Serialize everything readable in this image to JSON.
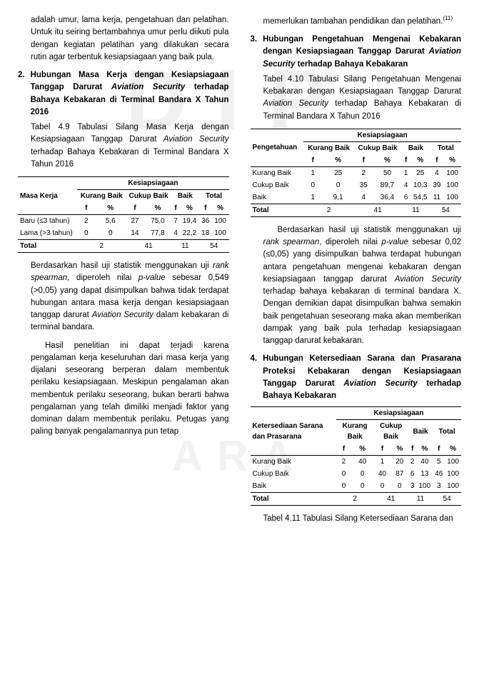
{
  "left": {
    "p1": "adalah umur, lama kerja, pengetahuan dan pelatihan. Untuk itu seiring bertambahnya umur perlu diikuti pula dengan kegiatan pelatihan yang dilakukan secara rutin agar terbentuk kesiapsiagaan yang baik pula.",
    "h2_num": "2.",
    "h2_a": "Hubungan Masa Kerja dengan Kesiapsiagaan Tanggap Darurat ",
    "h2_b": "Aviation Security",
    "h2_c": " terhadap Bahaya Kebakaran di Terminal Bandara X Tahun 2016",
    "p2a": "Tabel 4.9 Tabulasi Silang Masa Kerja dengan Kesiapsiagaan Tanggap Darurat ",
    "p2b": "Aviation Security",
    "p2c": " terhadap Bahaya Kebakaran di Terminal Bandara X Tahun 2016",
    "table9": {
      "rowLabel": "Masa Kerja",
      "colGroupLabel": "Kesiapsiagaan",
      "cols": [
        "Kurang Baik",
        "Cukup Baik",
        "Baik",
        "Total"
      ],
      "sub": [
        "f",
        "%",
        "f",
        "%",
        "f",
        "%",
        "f",
        "%"
      ],
      "rows": [
        {
          "label": "Baru (≤3 tahun)",
          "cells": [
            "2",
            "5,6",
            "27",
            "75,0",
            "7",
            "19,4",
            "36",
            "100"
          ]
        },
        {
          "label": "Lama (>3 tahun)",
          "cells": [
            "0",
            "0",
            "14",
            "77,8",
            "4",
            "22,2",
            "18",
            "100"
          ]
        }
      ],
      "total": {
        "label": "Total",
        "cells": [
          "2",
          "",
          "41",
          "",
          "11",
          "",
          "54",
          ""
        ]
      },
      "style": {
        "border_color": "#000000",
        "header_bg": "#ffffff",
        "font_size": 10
      }
    },
    "p3a": "Berdasarkan hasil uji statistik menggunakan uji ",
    "p3b": "rank spearman",
    "p3c": ", diperoleh nilai ",
    "p3d": "p-value",
    "p3e": " sebesar 0,549 (>0,05) yang dapat disimpulkan bahwa tidak terdapat hubungan antara masa kerja dengan kesiapsiagaan tanggap darurat ",
    "p3f": "Aviation Security",
    "p3g": " dalam kebakaran di terminal bandara.",
    "p4": "Hasil penelitian ini dapat terjadi karena pengalaman kerja keseluruhan dari masa kerja yang dijalani seseorang berperan dalam membentuk perilaku kesiapsiagaan. Meskipun pengalaman akan membentuk perilaku seseorang, bukan berarti bahwa pengalaman yang telah dimiliki menjadi faktor yang dominan dalam membentuk perilaku. Petugas yang paling banyak pengalamannya pun tetap"
  },
  "right": {
    "p0a": "memerlukan tambahan pendidikan dan pelatihan.",
    "p0b": "(11)",
    "h3_num": "3.",
    "h3_a": "Hubungan Pengetahuan Mengenai Kebakaran dengan Kesiapsiagaan Tanggap Darurat ",
    "h3_b": "Aviation Security",
    "h3_c": " terhadap Bahaya Kebakaran",
    "p5a": "Tabel 4.10 Tabulasi Silang Pengetahuan Mengenai Kebakaran dengan Kesiapsiagaan Tanggap Darurat ",
    "p5b": "Aviation Security",
    "p5c": " terhadap Bahaya Kebakaran di Terminal Bandara X Tahun 2016",
    "table10": {
      "rowLabel": "Pengetahuan",
      "colGroupLabel": "Kesiapsiagaan",
      "cols": [
        "Kurang Baik",
        "Cukup Baik",
        "Baik",
        "Total"
      ],
      "sub": [
        "f",
        "%",
        "f",
        "%",
        "f",
        "%",
        "f",
        "%"
      ],
      "rows": [
        {
          "label": "Kurang Baik",
          "cells": [
            "1",
            "25",
            "2",
            "50",
            "1",
            "25",
            "4",
            "100"
          ]
        },
        {
          "label": "Cukup Baik",
          "cells": [
            "0",
            "0",
            "35",
            "89,7",
            "4",
            "10,3",
            "39",
            "100"
          ]
        },
        {
          "label": "Baik",
          "cells": [
            "1",
            "9,1",
            "4",
            "36,4",
            "6",
            "54,5",
            "11",
            "100"
          ]
        }
      ],
      "total": {
        "label": "Total",
        "cells": [
          "2",
          "",
          "41",
          "",
          "11",
          "",
          "54",
          ""
        ]
      },
      "style": {
        "border_color": "#000000",
        "header_bg": "#ffffff",
        "font_size": 10
      }
    },
    "p6a": "Berdasarkan hasil uji statistik menggunakan uji ",
    "p6b": "rank spearman",
    "p6c": ", diperoleh nilai ",
    "p6d": "p-value",
    "p6e": " sebesar 0,02 (≤0,05) yang disimpulkan bahwa terdapat hubungan antara pengetahuan mengenai kebakaran dengan kesiapsiagaan tanggap darurat ",
    "p6f": "Aviation Security",
    "p6g": " terhadap bahaya kebakaran di terminal bandara X. Dengan demikian dapat disimpulkan bahwa semakin baik pengetahuan seseorang maka akan memberikan dampak yang baik pula terhadap kesiapsiagaan tanggap darurat kebakaran.",
    "h4_num": "4.",
    "h4_a": "Hubungan Ketersediaan Sarana dan Prasarana Proteksi Kebakaran dengan Kesiapsiagaan Tanggap Darurat ",
    "h4_b": "Aviation Security",
    "h4_c": " terhadap Bahaya Kebakaran",
    "table11": {
      "rowLabel": "Ketersediaan Sarana dan Prasarana",
      "colGroupLabel": "Kesiapsiagaan",
      "cols": [
        "Kurang Baik",
        "Cukup Baik",
        "Baik",
        "Total"
      ],
      "sub": [
        "f",
        "%",
        "f",
        "%",
        "f",
        "%",
        "f",
        "%"
      ],
      "rows": [
        {
          "label": "Kurang Baik",
          "cells": [
            "2",
            "40",
            "1",
            "20",
            "2",
            "40",
            "5",
            "100"
          ]
        },
        {
          "label": "Cukup Baik",
          "cells": [
            "0",
            "0",
            "40",
            "87",
            "6",
            "13",
            "46",
            "100"
          ]
        },
        {
          "label": "Baik",
          "cells": [
            "0",
            "0",
            "0",
            "0",
            "3",
            "100",
            "3",
            "100"
          ]
        }
      ],
      "total": {
        "label": "Total",
        "cells": [
          "2",
          "",
          "41",
          "",
          "11",
          "",
          "54",
          ""
        ]
      },
      "style": {
        "border_color": "#000000",
        "header_bg": "#ffffff",
        "font_size": 10
      }
    },
    "p7": "Tabel 4.11 Tabulasi Silang Ketersediaan Sarana dan"
  }
}
